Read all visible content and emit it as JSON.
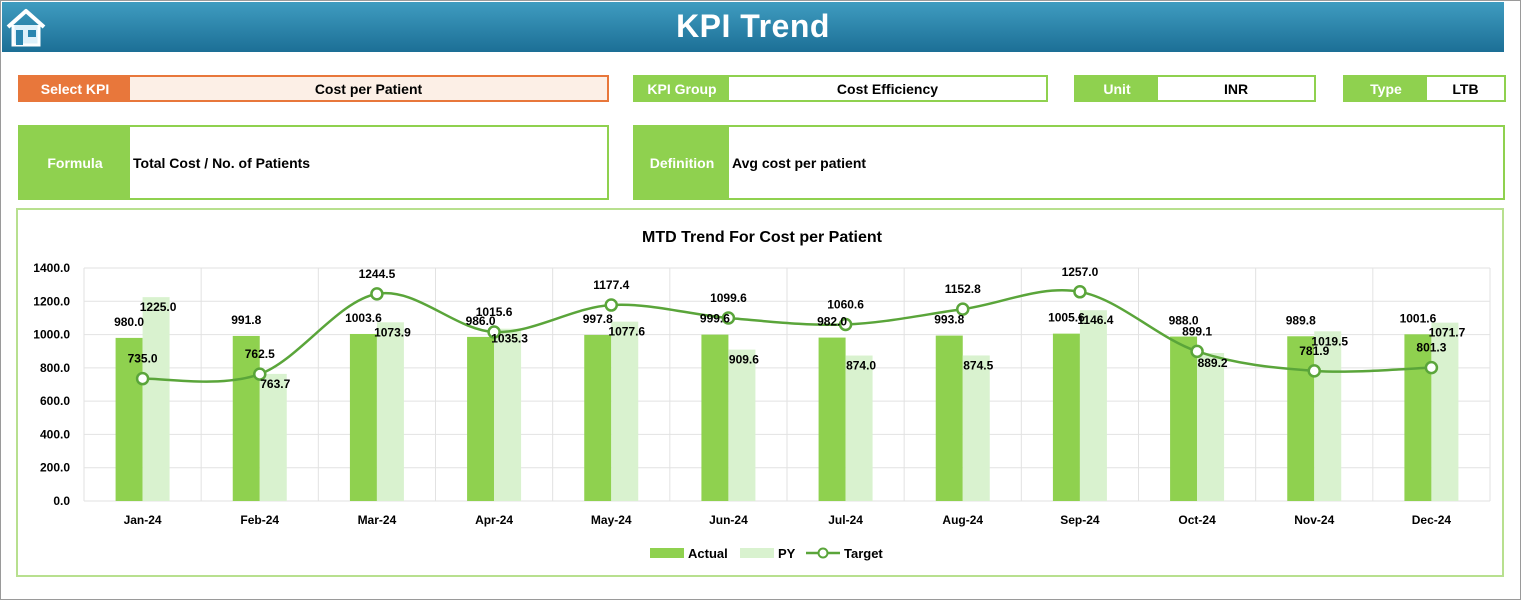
{
  "header": {
    "title": "KPI Trend"
  },
  "fields": {
    "select_kpi_label": "Select KPI",
    "select_kpi_value": "Cost per Patient",
    "kpi_group_label": "KPI Group",
    "kpi_group_value": "Cost Efficiency",
    "unit_label": "Unit",
    "unit_value": "INR",
    "type_label": "Type",
    "type_value": "LTB",
    "formula_label": "Formula",
    "formula_value": "Total Cost / No. of Patients",
    "definition_label": "Definition",
    "definition_value": "Avg cost per patient"
  },
  "colors": {
    "header": "#1c6f96",
    "kpi_accent": "#e8773b",
    "green_accent": "#8fd14f",
    "actual": "#8fd14f",
    "py": "#d9f2cf",
    "target": "#5aa53a"
  },
  "icons": {
    "home": "home-icon"
  },
  "chart_data": {
    "type": "bar",
    "title": "MTD Trend For Cost per Patient",
    "categories": [
      "Jan-24",
      "Feb-24",
      "Mar-24",
      "Apr-24",
      "May-24",
      "Jun-24",
      "Jul-24",
      "Aug-24",
      "Sep-24",
      "Oct-24",
      "Nov-24",
      "Dec-24"
    ],
    "series": [
      {
        "name": "Actual",
        "type": "bar",
        "values": [
          980.0,
          991.8,
          1003.6,
          986.0,
          997.8,
          999.6,
          982.0,
          993.8,
          1005.6,
          988.0,
          989.8,
          1001.6
        ]
      },
      {
        "name": "PY",
        "type": "bar",
        "values": [
          1225.0,
          763.7,
          1073.9,
          1035.3,
          1077.6,
          909.6,
          874.0,
          874.5,
          1146.4,
          889.2,
          1019.5,
          1071.7
        ]
      },
      {
        "name": "Target",
        "type": "line",
        "values": [
          735.0,
          762.5,
          1244.5,
          1015.6,
          1177.4,
          1099.6,
          1060.6,
          1152.8,
          1257.0,
          899.1,
          781.9,
          801.3
        ]
      }
    ],
    "yticks": [
      "0.0",
      "200.0",
      "400.0",
      "600.0",
      "800.0",
      "1000.0",
      "1200.0",
      "1400.0"
    ],
    "labels": {
      "actual": [
        "980.0",
        "991.8",
        "1003.6",
        "986.0",
        "997.8",
        "999.6",
        "982.0",
        "993.8",
        "1005.6",
        "988.0",
        "989.8",
        "1001.6"
      ],
      "py": [
        "1225.0",
        "763.7",
        "1073.9",
        "1035.3",
        "1077.6",
        "909.6",
        "874.0",
        "874.5",
        "1146.4",
        "889.2",
        "1019.5",
        "1071.7"
      ],
      "target": [
        "735.0",
        "762.5",
        "1244.5",
        "1015.6",
        "1177.4",
        "1099.6",
        "1060.6",
        "1152.8",
        "1257.0",
        "899.1",
        "781.9",
        "801.3"
      ]
    },
    "ylim": [
      0,
      1400
    ],
    "grid": true,
    "legend_position": "bottom"
  }
}
